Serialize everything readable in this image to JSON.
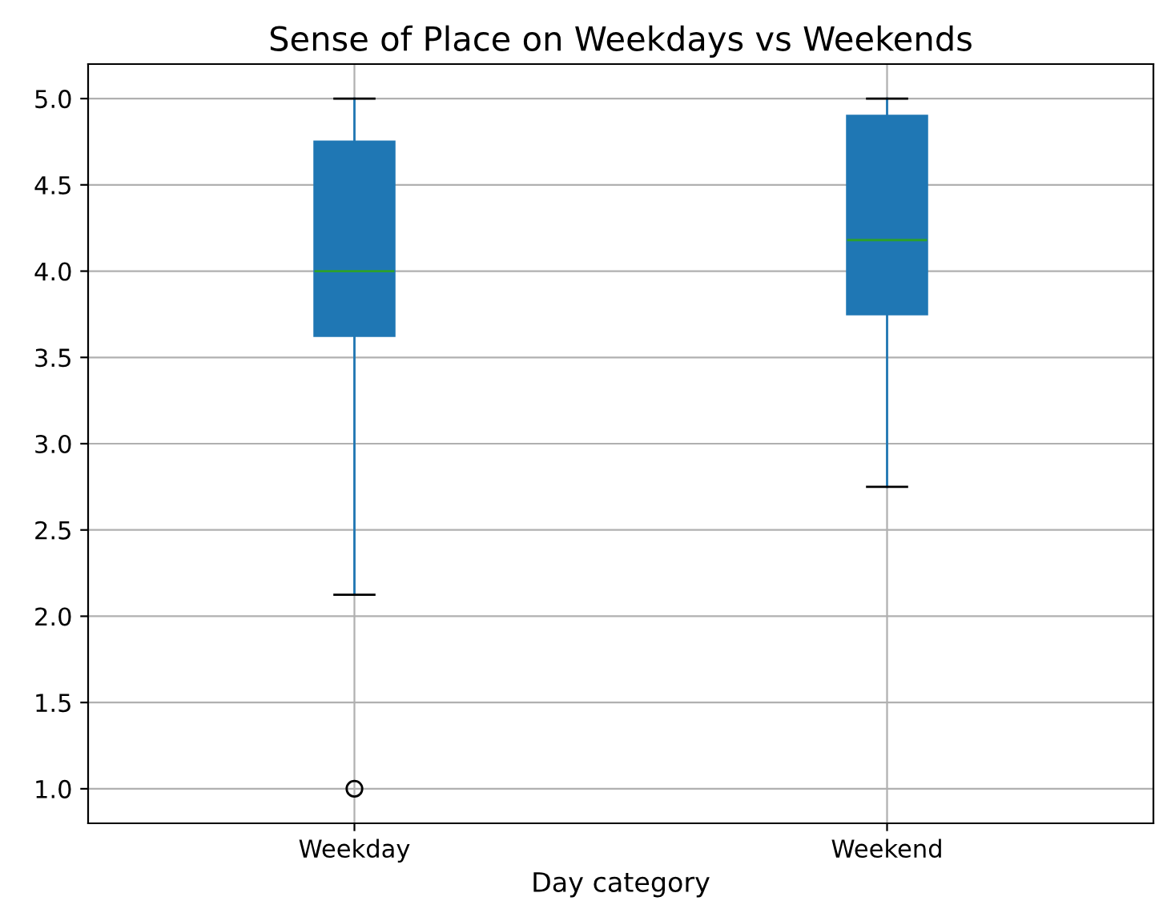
{
  "chart_data": {
    "type": "box",
    "title": "Sense of Place on Weekdays vs Weekends",
    "xlabel": "Day category",
    "categories": [
      "Weekday",
      "Weekend"
    ],
    "boxes": [
      {
        "low": 2.125,
        "q1": 3.625,
        "median": 4.0,
        "q3": 4.75,
        "high": 5.0,
        "outliers": [
          1.0
        ]
      },
      {
        "low": 2.75,
        "q1": 3.75,
        "median": 4.18,
        "q3": 4.9,
        "high": 5.0
      }
    ],
    "color": "#1f77b4",
    "ylim": [
      0.8,
      5.2
    ],
    "yticks": [
      {
        "value": 1,
        "label": "1.0"
      },
      1.5,
      {
        "value": 2,
        "label": "2.0"
      },
      2.5,
      {
        "value": 3,
        "label": "3.0"
      },
      3.5,
      {
        "value": 4,
        "label": "4.0"
      },
      4.5,
      {
        "value": 5,
        "label": "5.0"
      }
    ],
    "grid": true
  }
}
